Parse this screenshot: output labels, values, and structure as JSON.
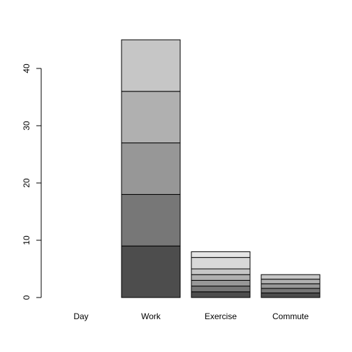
{
  "chart_data": {
    "type": "bar",
    "stacked": true,
    "title": "",
    "xlabel": "",
    "ylabel": "",
    "categories": [
      "Day",
      "Work",
      "Exercise",
      "Commute"
    ],
    "segments": [
      [],
      [
        9,
        9,
        9,
        9,
        9
      ],
      [
        1,
        1,
        1,
        1,
        1,
        2,
        1
      ],
      [
        0.8,
        0.8,
        0.8,
        0.8,
        0.8
      ]
    ],
    "totals": [
      0,
      45,
      8,
      4
    ],
    "ylim": [
      0,
      45
    ],
    "yticks": [
      0,
      10,
      20,
      30,
      40
    ],
    "grid": false,
    "legend": "none",
    "colors": {
      "stroke": "#000000",
      "segment_shades": [
        "#4d4d4d",
        "#777777",
        "#979797",
        "#b0b0b0",
        "#c6c6c6",
        "#d8d8d8",
        "#e6e6e6"
      ]
    }
  }
}
